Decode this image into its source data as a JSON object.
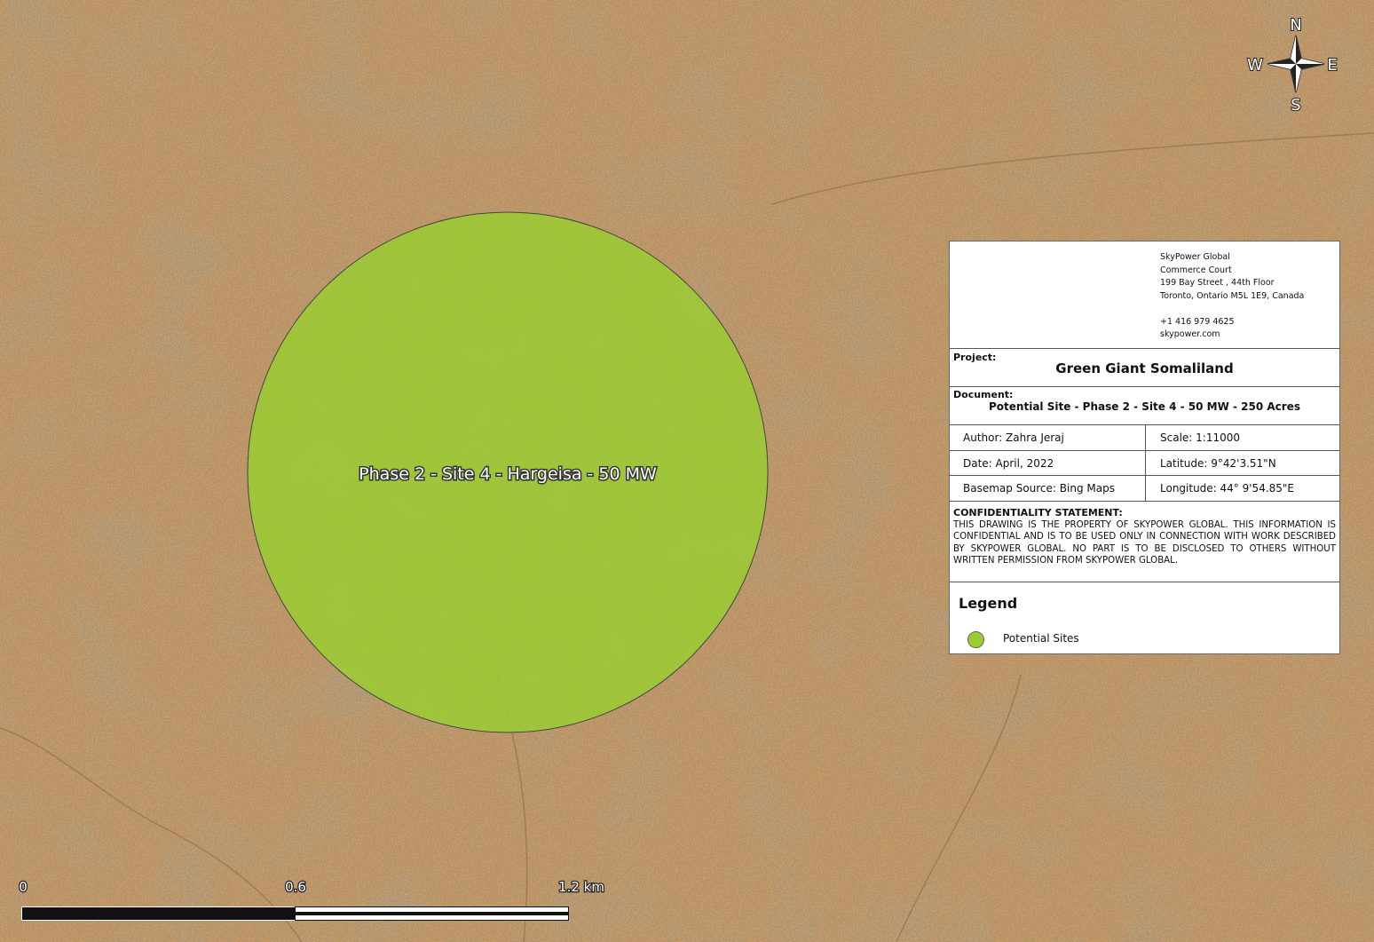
{
  "map": {
    "site_label": "Phase 2 - Site 4 - Hargeisa - 50 MW",
    "compass": {
      "north": "N",
      "south": "S",
      "east": "E",
      "west": "W"
    },
    "scale_bar": {
      "labels": [
        "0",
        "0.6",
        "1.2 km"
      ]
    }
  },
  "title_block": {
    "company_lines": [
      "SkyPower Global",
      "Commerce Court",
      "199 Bay Street , 44th Floor",
      "Toronto, Ontario M5L 1E9, Canada",
      "+1 416 979 4625",
      "skypower.com"
    ],
    "project": {
      "label": "Project:",
      "value": "Green Giant Somaliland"
    },
    "document": {
      "label": "Document:",
      "value": "Potential Site - Phase 2 - Site 4 - 50 MW - 250 Acres"
    },
    "info": [
      [
        "Author: Zahra Jeraj",
        "Scale: 1:11000"
      ],
      [
        "Date: April, 2022",
        "Latitude: 9°42'3.51\"N"
      ],
      [
        "Basemap Source: Bing Maps",
        "Longitude: 44° 9'54.85\"E"
      ]
    ],
    "confidentiality": {
      "heading": "CONFIDENTIALITY STATEMENT:",
      "text": "THIS DRAWING IS THE PROPERTY OF SKYPOWER GLOBAL. THIS INFORMATION IS CONFIDENTIAL AND IS TO BE USED ONLY IN CONNECTION WITH WORK DESCRIBED BY SKYPOWER GLOBAL. NO PART IS TO BE DISCLOSED TO OTHERS WITHOUT WRITTEN PERMISSION FROM SKYPOWER GLOBAL."
    },
    "legend": {
      "title": "Legend",
      "items": [
        {
          "label": "Potential Sites",
          "color": "#9acd32"
        }
      ]
    }
  }
}
